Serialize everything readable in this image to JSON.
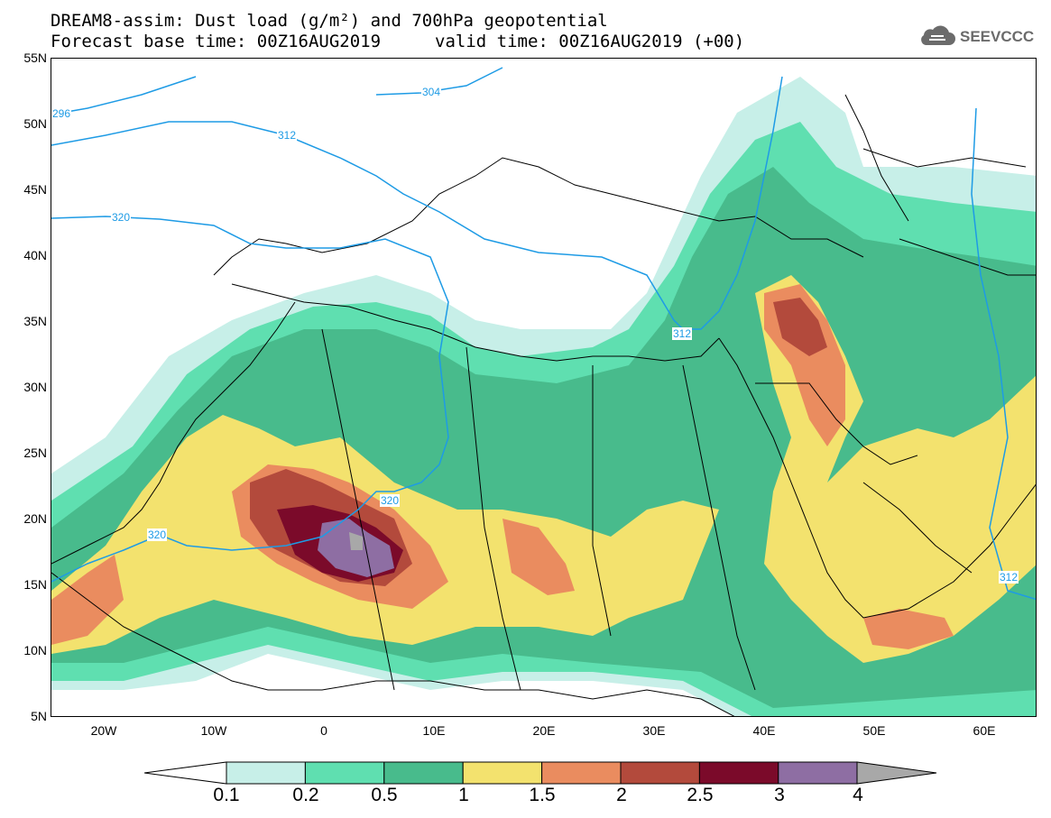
{
  "title": {
    "line1": "DREAM8-assim: Dust load (g/m²) and 700hPa geopotential",
    "line2a": "Forecast base time: 00Z16AUG2019",
    "line2b": "valid time: 00Z16AUG2019 (+00)"
  },
  "logo": {
    "text": "SEEVCCC",
    "icon": "cloud-icon"
  },
  "axes": {
    "lat_labels": [
      "55N",
      "50N",
      "45N",
      "40N",
      "35N",
      "30N",
      "25N",
      "20N",
      "15N",
      "10N",
      "5N"
    ],
    "lon_labels": [
      "20W",
      "10W",
      "0",
      "10E",
      "20E",
      "30E",
      "40E",
      "50E",
      "60E"
    ]
  },
  "contour_labels": [
    "296",
    "304",
    "312",
    "320",
    "312",
    "320",
    "312"
  ],
  "colorbar": {
    "labels": [
      "0.1",
      "0.2",
      "0.5",
      "1",
      "1.5",
      "2",
      "2.5",
      "3",
      "4"
    ],
    "colors": [
      "#c7efe8",
      "#5fdfb0",
      "#48bb8c",
      "#f3e26e",
      "#ea8c5f",
      "#b34a3c",
      "#7b0a2a",
      "#8e6ea3",
      "#a8a8a8"
    ]
  },
  "colors": {
    "contour": "#1e9be5",
    "coast": "#000000"
  }
}
